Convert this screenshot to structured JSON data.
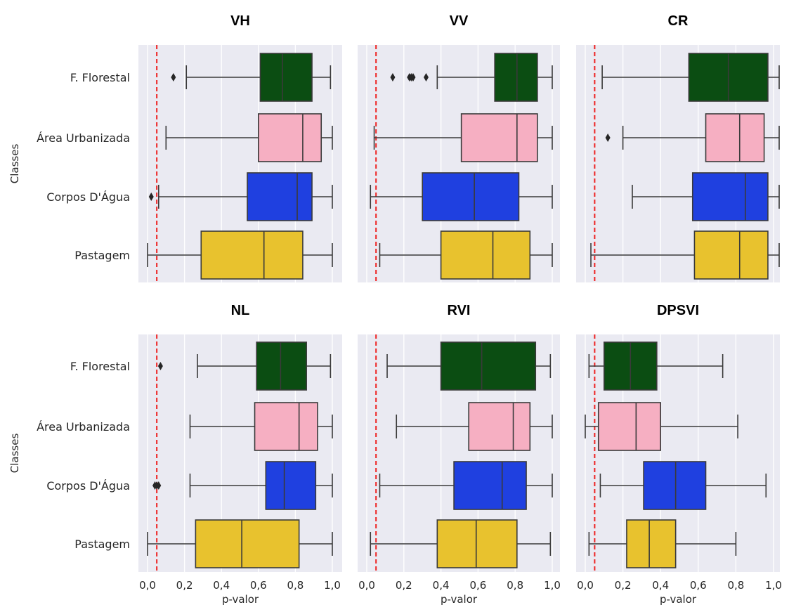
{
  "chart_data": {
    "type": "boxplot",
    "orientation": "horizontal",
    "ylabel": "Classes",
    "xlabel": "p-valor",
    "xlim": [
      0.0,
      1.0
    ],
    "xticks": [
      "0,0",
      "0,2",
      "0,4",
      "0,6",
      "0,8",
      "1,0"
    ],
    "reference_line": {
      "x": 0.05,
      "color": "#ee2222",
      "style": "dashed"
    },
    "categories": [
      "F. Florestal",
      "Área Urbanizada",
      "Corpos D'Água",
      "Pastagem"
    ],
    "category_colors": [
      "#0b4d12",
      "#f6afc2",
      "#1f40e0",
      "#e8c22e"
    ],
    "panels": [
      {
        "title": "VH",
        "boxes": [
          {
            "category": "F. Florestal",
            "whislo": 0.21,
            "q1": 0.61,
            "med": 0.73,
            "q3": 0.89,
            "whishi": 0.99,
            "fliers": [
              0.14
            ]
          },
          {
            "category": "Área Urbanizada",
            "whislo": 0.1,
            "q1": 0.6,
            "med": 0.84,
            "q3": 0.94,
            "whishi": 1.0,
            "fliers": []
          },
          {
            "category": "Corpos D'Água",
            "whislo": 0.06,
            "q1": 0.54,
            "med": 0.81,
            "q3": 0.89,
            "whishi": 1.0,
            "fliers": [
              0.02
            ]
          },
          {
            "category": "Pastagem",
            "whislo": 0.0,
            "q1": 0.29,
            "med": 0.63,
            "q3": 0.84,
            "whishi": 1.0,
            "fliers": []
          }
        ]
      },
      {
        "title": "VV",
        "boxes": [
          {
            "category": "F. Florestal",
            "whislo": 0.38,
            "q1": 0.69,
            "med": 0.81,
            "q3": 0.92,
            "whishi": 1.0,
            "fliers": [
              0.14,
              0.23,
              0.24,
              0.25,
              0.32
            ]
          },
          {
            "category": "Área Urbanizada",
            "whislo": 0.04,
            "q1": 0.51,
            "med": 0.81,
            "q3": 0.92,
            "whishi": 1.0,
            "fliers": []
          },
          {
            "category": "Corpos D'Água",
            "whislo": 0.02,
            "q1": 0.3,
            "med": 0.58,
            "q3": 0.82,
            "whishi": 1.0,
            "fliers": []
          },
          {
            "category": "Pastagem",
            "whislo": 0.07,
            "q1": 0.4,
            "med": 0.68,
            "q3": 0.88,
            "whishi": 1.0,
            "fliers": []
          }
        ]
      },
      {
        "title": "CR",
        "boxes": [
          {
            "category": "F. Florestal",
            "whislo": 0.09,
            "q1": 0.55,
            "med": 0.76,
            "q3": 0.97,
            "whishi": 1.04,
            "fliers": []
          },
          {
            "category": "Área Urbanizada",
            "whislo": 0.2,
            "q1": 0.64,
            "med": 0.82,
            "q3": 0.95,
            "whishi": 1.04,
            "fliers": [
              0.12
            ]
          },
          {
            "category": "Corpos D'Água",
            "whislo": 0.25,
            "q1": 0.57,
            "med": 0.85,
            "q3": 0.97,
            "whishi": 1.04,
            "fliers": []
          },
          {
            "category": "Pastagem",
            "whislo": 0.03,
            "q1": 0.58,
            "med": 0.82,
            "q3": 0.97,
            "whishi": 1.04,
            "fliers": []
          }
        ]
      },
      {
        "title": "NL",
        "boxes": [
          {
            "category": "F. Florestal",
            "whislo": 0.27,
            "q1": 0.59,
            "med": 0.72,
            "q3": 0.86,
            "whishi": 0.99,
            "fliers": [
              0.07
            ]
          },
          {
            "category": "Área Urbanizada",
            "whislo": 0.23,
            "q1": 0.58,
            "med": 0.82,
            "q3": 0.92,
            "whishi": 1.0,
            "fliers": []
          },
          {
            "category": "Corpos D'Água",
            "whislo": 0.23,
            "q1": 0.64,
            "med": 0.74,
            "q3": 0.91,
            "whishi": 1.0,
            "fliers": [
              0.04,
              0.05,
              0.06
            ]
          },
          {
            "category": "Pastagem",
            "whislo": 0.0,
            "q1": 0.26,
            "med": 0.51,
            "q3": 0.82,
            "whishi": 1.0,
            "fliers": []
          }
        ]
      },
      {
        "title": "RVI",
        "boxes": [
          {
            "category": "F. Florestal",
            "whislo": 0.11,
            "q1": 0.4,
            "med": 0.62,
            "q3": 0.91,
            "whishi": 0.99,
            "fliers": []
          },
          {
            "category": "Área Urbanizada",
            "whislo": 0.16,
            "q1": 0.55,
            "med": 0.79,
            "q3": 0.88,
            "whishi": 1.0,
            "fliers": []
          },
          {
            "category": "Corpos D'Água",
            "whislo": 0.07,
            "q1": 0.47,
            "med": 0.73,
            "q3": 0.86,
            "whishi": 1.0,
            "fliers": []
          },
          {
            "category": "Pastagem",
            "whislo": 0.02,
            "q1": 0.38,
            "med": 0.59,
            "q3": 0.81,
            "whishi": 0.99,
            "fliers": []
          }
        ]
      },
      {
        "title": "DPSVI",
        "boxes": [
          {
            "category": "F. Florestal",
            "whislo": 0.02,
            "q1": 0.1,
            "med": 0.24,
            "q3": 0.38,
            "whishi": 0.73,
            "fliers": []
          },
          {
            "category": "Área Urbanizada",
            "whislo": 0.0,
            "q1": 0.07,
            "med": 0.27,
            "q3": 0.4,
            "whishi": 0.81,
            "fliers": []
          },
          {
            "category": "Corpos D'Água",
            "whislo": 0.08,
            "q1": 0.31,
            "med": 0.48,
            "q3": 0.64,
            "whishi": 0.96,
            "fliers": []
          },
          {
            "category": "Pastagem",
            "whislo": 0.02,
            "q1": 0.22,
            "med": 0.34,
            "q3": 0.48,
            "whishi": 0.8,
            "fliers": []
          }
        ]
      }
    ]
  }
}
